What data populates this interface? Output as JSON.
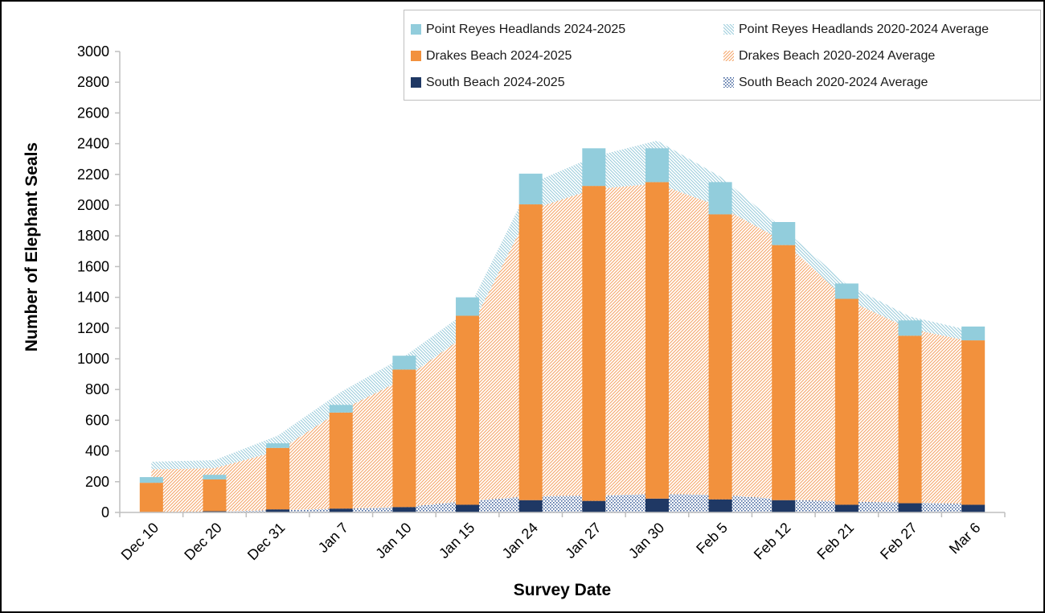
{
  "figure": {
    "x_axis_title": "Survey Date",
    "y_axis_title": "Number of Elephant Seals"
  },
  "legend": {
    "position": "top-right",
    "items": [
      {
        "label": "Point Reyes Headlands 2024-2025",
        "swatch": "solid",
        "color_key": "prh_solid"
      },
      {
        "label": "Point Reyes Headlands 2020-2024 Average",
        "swatch": "hatch_down",
        "color_key": "prh_hatch"
      },
      {
        "label": "Drakes Beach 2024-2025",
        "swatch": "solid",
        "color_key": "drakes_solid"
      },
      {
        "label": "Drakes Beach 2020-2024 Average",
        "swatch": "hatch_up",
        "color_key": "drakes_hatch"
      },
      {
        "label": "South Beach 2024-2025",
        "swatch": "solid",
        "color_key": "south_solid"
      },
      {
        "label": "South Beach 2020-2024 Average",
        "swatch": "dots",
        "color_key": "south_dots"
      }
    ]
  },
  "colors": {
    "prh_solid": "#92CDDC",
    "drakes_solid": "#F2913D",
    "south_solid": "#1F3864",
    "prh_hatch": "#9CCDDC",
    "drakes_hatch": "#F5A569",
    "south_dots": "#44659E",
    "axis": "#BFBFBF",
    "text": "#000000",
    "legend_border": "#BFBFBF"
  },
  "chart_data": {
    "type": "bar",
    "subtype": "stacked bars (2024-2025 season) over stacked hatched areas (2020-2024 averages)",
    "title": "",
    "xlabel": "Survey Date",
    "ylabel": "Number of Elephant Seals",
    "ylim": [
      0,
      3000
    ],
    "ytick_step": 200,
    "grid": false,
    "legend_position": "top-right",
    "categories": [
      "Dec 10",
      "Dec 20",
      "Dec 31",
      "Jan 7",
      "Jan 10",
      "Jan 15",
      "Jan 24",
      "Jan 27",
      "Jan 30",
      "Feb 5",
      "Feb 12",
      "Feb 21",
      "Feb 27",
      "Mar 6"
    ],
    "bar_series": [
      {
        "name": "South Beach 2024-2025",
        "values": [
          3,
          8,
          20,
          25,
          35,
          50,
          80,
          75,
          90,
          85,
          80,
          50,
          60,
          50
        ]
      },
      {
        "name": "Drakes Beach 2024-2025",
        "values": [
          190,
          207,
          400,
          625,
          895,
          1230,
          1925,
          2050,
          2060,
          1855,
          1660,
          1340,
          1090,
          1070
        ]
      },
      {
        "name": "Point Reyes Headlands 2024-2025",
        "values": [
          37,
          30,
          30,
          50,
          90,
          120,
          200,
          245,
          220,
          210,
          150,
          100,
          100,
          90
        ]
      }
    ],
    "bar_totals": [
      230,
      245,
      450,
      700,
      1020,
      1400,
      2205,
      2370,
      2370,
      2150,
      1890,
      1490,
      1250,
      1210
    ],
    "area_series": [
      {
        "name": "South Beach 2020-2024 Average",
        "values": [
          2,
          6,
          15,
          25,
          35,
          75,
          105,
          110,
          120,
          115,
          85,
          70,
          65,
          55
        ]
      },
      {
        "name": "Drakes Beach 2020-2024 Average",
        "values": [
          278,
          282,
          385,
          640,
          835,
          1085,
          1865,
          1995,
          2020,
          1875,
          1680,
          1315,
          1130,
          1055
        ]
      },
      {
        "name": "Point Reyes Headlands 2020-2024 Average",
        "values": [
          50,
          52,
          100,
          120,
          145,
          150,
          170,
          210,
          280,
          195,
          80,
          100,
          80,
          70
        ]
      }
    ],
    "area_totals": [
      330,
      340,
      500,
      785,
      1015,
      1310,
      2140,
      2315,
      2420,
      2185,
      1845,
      1485,
      1275,
      1180
    ]
  }
}
